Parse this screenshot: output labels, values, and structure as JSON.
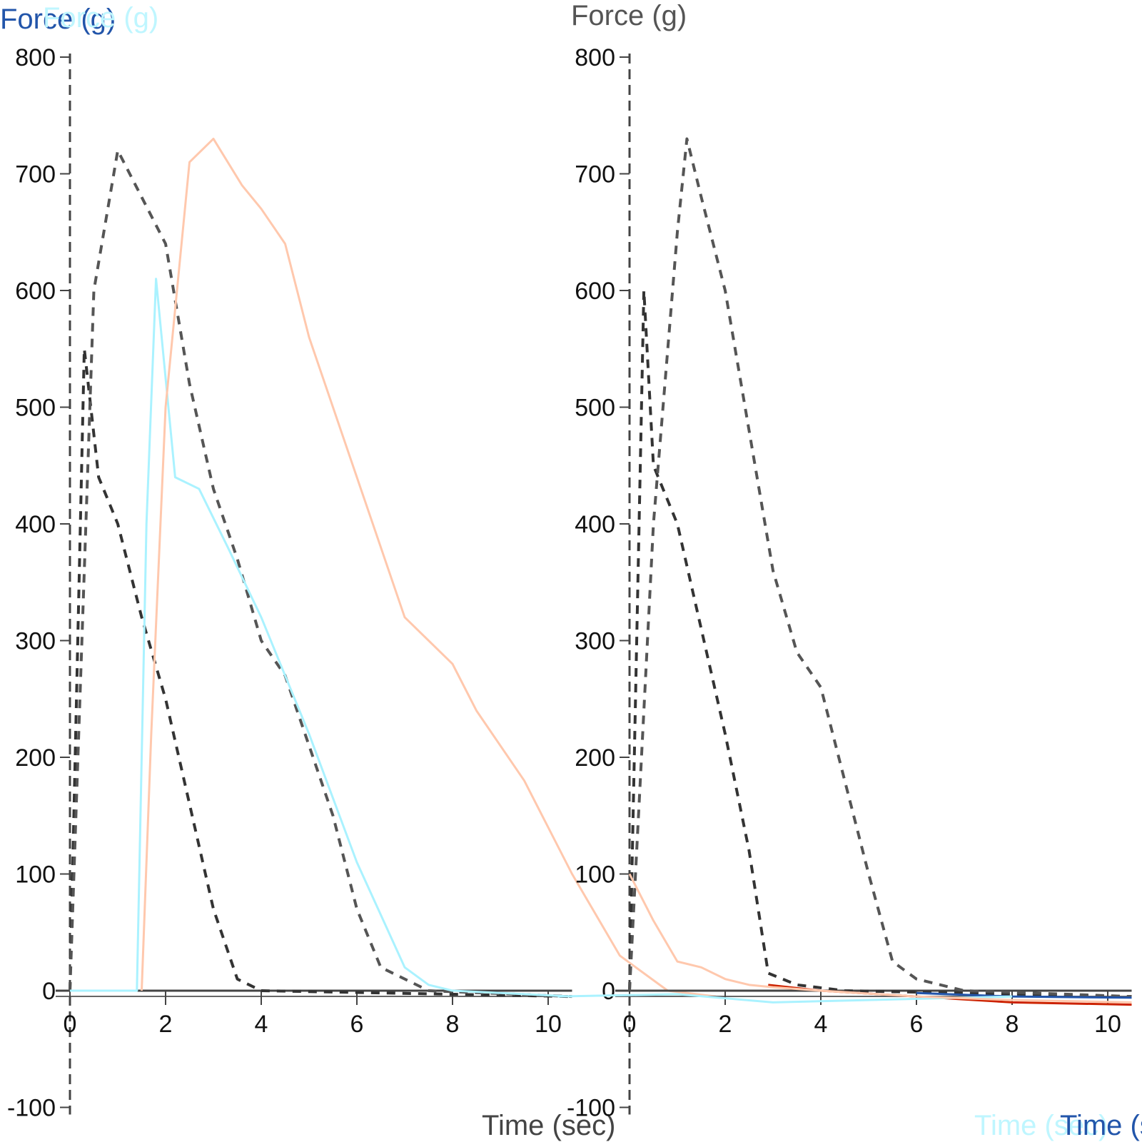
{
  "chart_data": [
    {
      "type": "line",
      "panel": "left",
      "title": "",
      "ylabel": "Force (g)",
      "xlabel": "Time (sec)",
      "xlim": [
        0,
        10.5
      ],
      "ylim": [
        -100,
        800
      ],
      "xticks": [
        0,
        2,
        4,
        6,
        8,
        10
      ],
      "yticks": [
        -100,
        0,
        100,
        200,
        300,
        400,
        500,
        600,
        700,
        800
      ],
      "grid": false,
      "legend": "none",
      "series": [
        {
          "name": "trace-dark-1",
          "color": "#333333",
          "style": "dashed",
          "x": [
            0,
            0.3,
            0.6,
            1.0,
            1.5,
            2.0,
            2.5,
            3.0,
            3.5,
            4.0,
            10.5
          ],
          "y": [
            0,
            550,
            440,
            400,
            320,
            250,
            160,
            70,
            10,
            0,
            -5
          ]
        },
        {
          "name": "trace-gray-2",
          "color": "#555555",
          "style": "dashed",
          "x": [
            0,
            0.5,
            1.0,
            1.5,
            2.0,
            2.5,
            3.0,
            3.5,
            4.0,
            4.5,
            5.0,
            5.5,
            6.0,
            6.5,
            7.5,
            10.5
          ],
          "y": [
            0,
            600,
            720,
            680,
            640,
            520,
            430,
            370,
            300,
            270,
            210,
            150,
            70,
            20,
            0,
            -5
          ]
        },
        {
          "name": "trace-cyan",
          "color": "#aaf2ff",
          "style": "solid",
          "x": [
            0,
            1.4,
            1.6,
            1.8,
            2.2,
            2.7,
            3.3,
            4.0,
            5.0,
            6.0,
            7.0,
            7.5,
            8.0,
            10.5
          ],
          "y": [
            0,
            0,
            400,
            610,
            440,
            430,
            380,
            320,
            220,
            110,
            20,
            5,
            0,
            -5
          ]
        },
        {
          "name": "trace-orange",
          "color": "#ffc8ad",
          "style": "solid",
          "x": [
            1.5,
            1.7,
            2.0,
            2.5,
            3.0,
            3.6,
            4.0,
            4.5,
            5.0,
            6.0,
            7.0,
            8.0,
            8.5,
            9.5,
            10.5,
            11.5,
            12.5,
            13.5
          ],
          "y": [
            0,
            220,
            500,
            710,
            730,
            690,
            670,
            640,
            560,
            440,
            320,
            280,
            240,
            180,
            100,
            30,
            0,
            -5
          ]
        }
      ]
    },
    {
      "type": "line",
      "panel": "right",
      "title": "",
      "ylabel": "Force (g)",
      "xlabel": "Time (sec)",
      "xlim": [
        0,
        10.5
      ],
      "ylim": [
        -100,
        800
      ],
      "xticks": [
        0,
        2,
        4,
        6,
        8,
        10
      ],
      "yticks": [
        -100,
        0,
        100,
        200,
        300,
        400,
        500,
        600,
        700,
        800
      ],
      "grid": false,
      "legend": "none",
      "series": [
        {
          "name": "trace-dark-1",
          "color": "#333333",
          "style": "dashed",
          "x": [
            0,
            0.3,
            0.5,
            1.0,
            1.5,
            2.0,
            2.5,
            2.9,
            3.5,
            4.5,
            10.5
          ],
          "y": [
            0,
            600,
            450,
            400,
            310,
            220,
            120,
            15,
            5,
            0,
            -5
          ]
        },
        {
          "name": "trace-gray-2",
          "color": "#555555",
          "style": "dashed",
          "x": [
            0,
            0.5,
            1.0,
            1.2,
            1.5,
            2.0,
            2.5,
            3.0,
            3.5,
            4.0,
            4.5,
            5.0,
            5.5,
            6.0,
            7.0,
            10.5
          ],
          "y": [
            0,
            400,
            650,
            730,
            680,
            600,
            480,
            360,
            290,
            260,
            180,
            100,
            25,
            10,
            0,
            -5
          ]
        },
        {
          "name": "trace-red",
          "color": "#cc2200",
          "style": "solid",
          "x": [
            2.9,
            4.0,
            6.0,
            8.0,
            10.5
          ],
          "y": [
            5,
            0,
            -5,
            -10,
            -12
          ]
        },
        {
          "name": "trace-blue",
          "color": "#2255aa",
          "style": "solid",
          "x": [
            6.0,
            8.0,
            10.5
          ],
          "y": [
            -2,
            -5,
            -6
          ]
        },
        {
          "name": "trace-cyan",
          "color": "#aaf2ff",
          "style": "solid",
          "x": [
            -1.5,
            1.0,
            3.0,
            5.0,
            8.0
          ],
          "y": [
            -5,
            -3,
            -10,
            -8,
            -5
          ]
        },
        {
          "name": "trace-orange",
          "color": "#ffc8ad",
          "style": "solid",
          "x": [
            0,
            0.5,
            1.0,
            1.5,
            2.0,
            2.5,
            3.0,
            4.0,
            6.0,
            8.0,
            10.5
          ],
          "y": [
            100,
            60,
            25,
            20,
            10,
            5,
            3,
            0,
            -5,
            -8,
            -10
          ]
        }
      ]
    }
  ],
  "labels": {
    "left_ylabel_dark": "Force (g)",
    "left_ylabel_light": "Force (g)",
    "right_ylabel": "Force (g)",
    "left_xlabel": "Time (sec)",
    "right_xlabel_dark": "Time (sec)",
    "right_xlabel_light": "Time (sec)"
  },
  "colors": {
    "axis": "#444444",
    "tick_text": "#111111",
    "title_blue": "#2255aa",
    "title_cyan": "#bff6ff"
  }
}
